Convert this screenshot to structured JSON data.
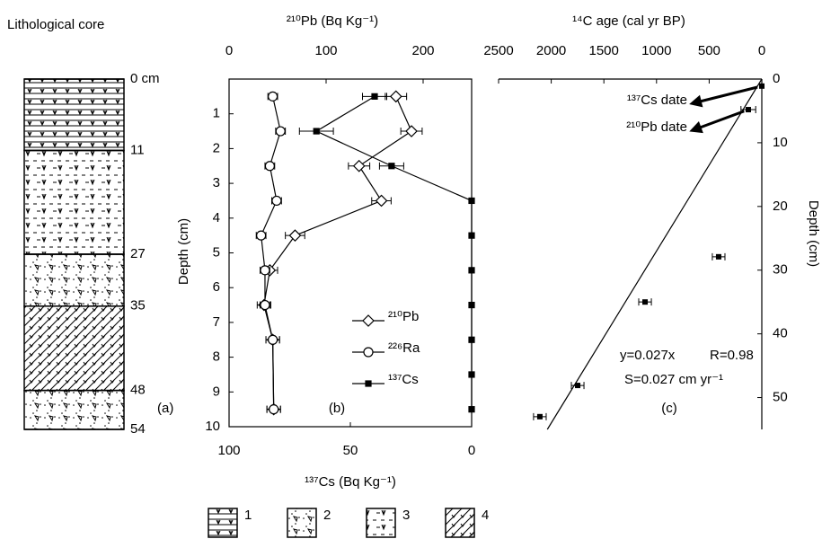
{
  "core": {
    "title": "Lithological core",
    "label": "(a)",
    "depth_ticks": [
      {
        "value": 0,
        "label": "0 cm"
      },
      11,
      27,
      35,
      48,
      54
    ],
    "layers": [
      1,
      3,
      2,
      4,
      2
    ],
    "legend": [
      "1",
      "2",
      "3",
      "4"
    ]
  },
  "chart_data": [
    {
      "type": "line",
      "label": "(b)",
      "x_label": "²¹⁰Pb (Bq Kg⁻¹)",
      "x2_label": "¹³⁷Cs (Bq Kg⁻¹)",
      "y_label": "Depth (cm)",
      "xlim": [
        0,
        250
      ],
      "xticks": [
        0,
        100,
        200
      ],
      "x2lim": [
        100,
        0
      ],
      "x2ticks": [
        100,
        50,
        0
      ],
      "ylim": [
        0,
        10
      ],
      "yticks": [
        1,
        2,
        3,
        4,
        5,
        6,
        7,
        8,
        9,
        10
      ],
      "series": [
        {
          "name": "²¹⁰Pb",
          "color": "#000000",
          "marker": "diamond",
          "depth": [
            0.5,
            1.5,
            2.5,
            3.5,
            4.5,
            5.5,
            6.5,
            7.5,
            9.5
          ],
          "values": [
            172,
            188,
            134,
            157,
            68,
            42,
            36,
            45,
            46
          ],
          "errors": [
            11,
            11,
            11,
            10,
            10,
            8,
            7,
            7,
            7
          ]
        },
        {
          "name": "²²⁶Ra",
          "color": "#000000",
          "marker": "circle",
          "depth": [
            0.5,
            1.5,
            2.5,
            3.5,
            4.5,
            5.5,
            6.5,
            7.5,
            9.5
          ],
          "values": [
            45,
            53,
            42,
            49,
            33,
            37,
            37,
            45,
            46
          ],
          "errors": [
            5,
            5,
            5,
            5,
            5,
            5,
            5,
            7,
            7
          ]
        },
        {
          "name": "¹³⁷Cs",
          "color": "#000000",
          "marker": "square",
          "axis": "x2",
          "depth": [
            0.5,
            1.5,
            2.5,
            3.5,
            4.5,
            5.5,
            6.5,
            7.5,
            8.5,
            9.5
          ],
          "values": [
            40,
            64,
            33,
            0,
            0,
            0,
            0,
            0,
            0,
            0
          ],
          "errors": [
            5,
            7,
            5,
            null,
            null,
            null,
            null,
            null,
            null,
            null
          ]
        }
      ]
    },
    {
      "type": "scatter",
      "label": "(c)",
      "x_label": "¹⁴C age (cal yr BP)",
      "y_label": "Depth (cm)",
      "xlim": [
        2500,
        0
      ],
      "xticks": [
        2500,
        2000,
        1500,
        1000,
        500,
        0
      ],
      "ylim": [
        0,
        55
      ],
      "yticks": [
        0,
        10,
        20,
        30,
        40,
        50
      ],
      "x": [
        0,
        128,
        410,
        1109,
        1749,
        2108
      ],
      "values": [
        1.1,
        4.8,
        27.9,
        35,
        48.1,
        53
      ],
      "errors": [
        null,
        70,
        60,
        60,
        60,
        60
      ],
      "fit_slope": 0.027,
      "annotations": [
        {
          "text": "¹³⁷Cs date",
          "point": 0
        },
        {
          "text": "²¹⁰Pb date",
          "point": 1
        }
      ],
      "fit_text": [
        "y=0.027x",
        "R=0.98",
        "S=0.027 cm yr⁻¹"
      ]
    }
  ]
}
